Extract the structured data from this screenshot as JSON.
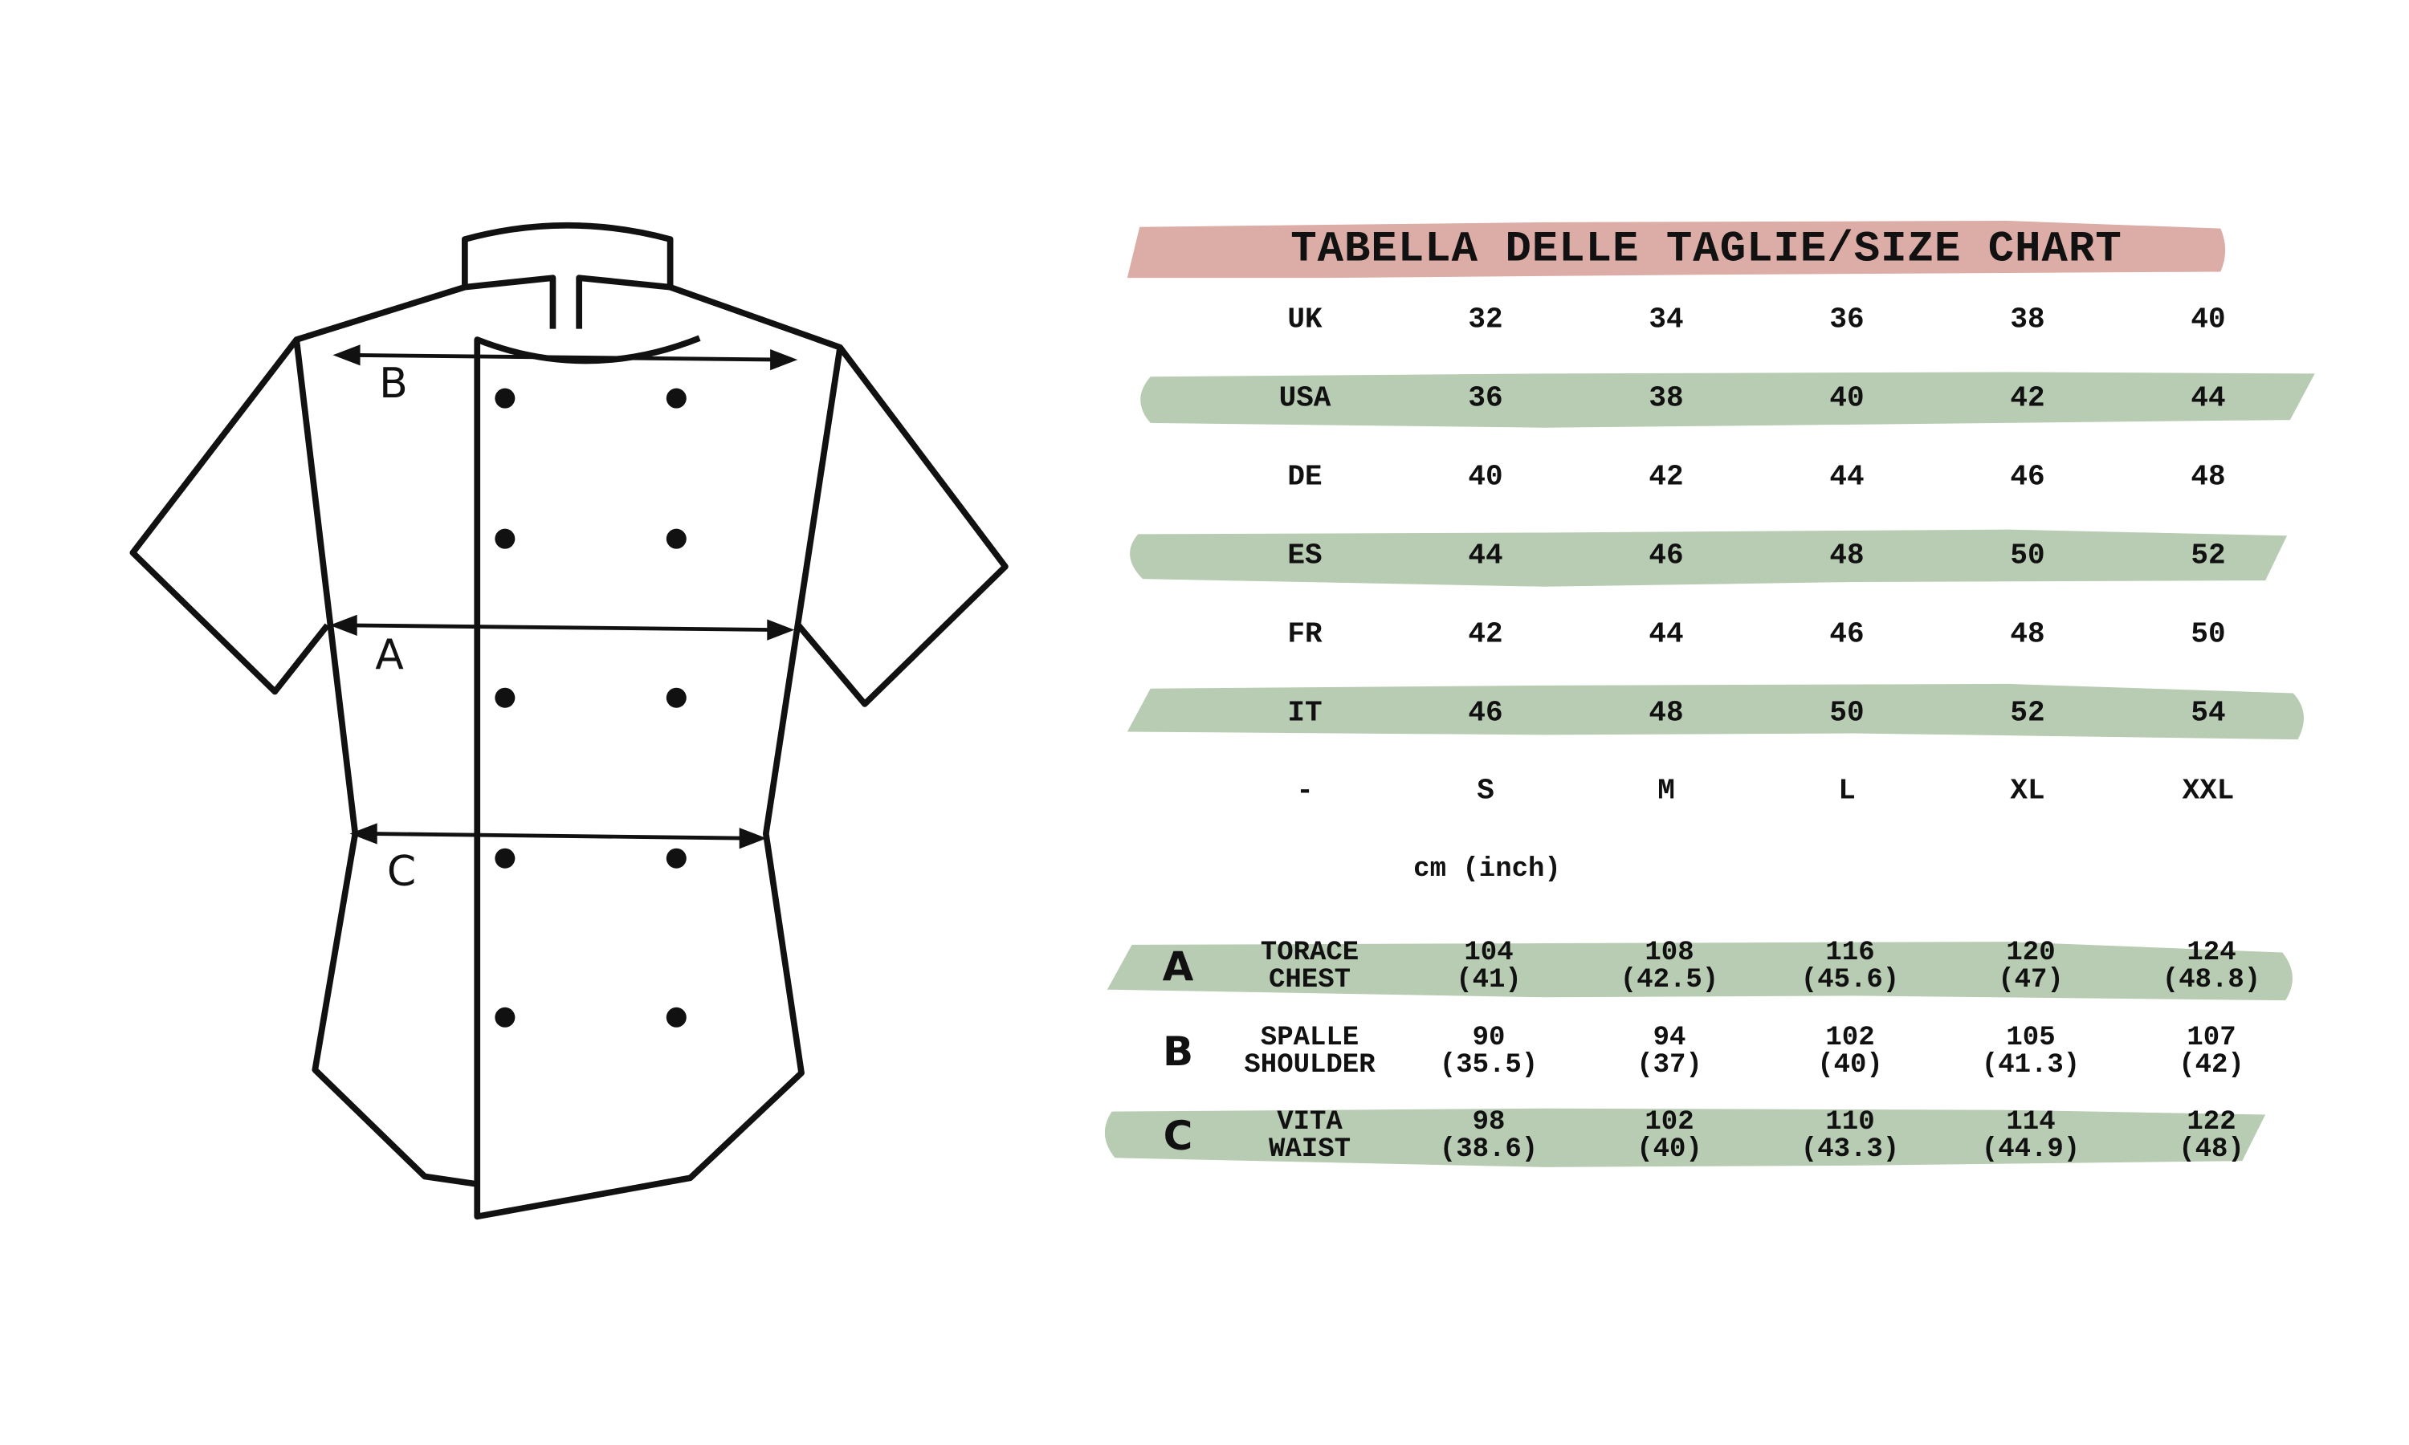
{
  "colors": {
    "title_band": "#dcaca6",
    "row_band": "#b7ccb2",
    "ink": "#111111"
  },
  "title": "TABELLA DELLE TAGLIE/SIZE CHART",
  "diagram_labels": [
    "B",
    "A",
    "C"
  ],
  "size_rows": [
    {
      "label": "UK",
      "values": [
        "32",
        "34",
        "36",
        "38",
        "40"
      ],
      "banded": false
    },
    {
      "label": "USA",
      "values": [
        "36",
        "38",
        "40",
        "42",
        "44"
      ],
      "banded": true
    },
    {
      "label": "DE",
      "values": [
        "40",
        "42",
        "44",
        "46",
        "48"
      ],
      "banded": false
    },
    {
      "label": "ES",
      "values": [
        "44",
        "46",
        "48",
        "50",
        "52"
      ],
      "banded": true
    },
    {
      "label": "FR",
      "values": [
        "42",
        "44",
        "46",
        "48",
        "50"
      ],
      "banded": false
    },
    {
      "label": "IT",
      "values": [
        "46",
        "48",
        "50",
        "52",
        "54"
      ],
      "banded": true
    },
    {
      "label": "-",
      "values": [
        "S",
        "M",
        "L",
        "XL",
        "XXL"
      ],
      "banded": false
    }
  ],
  "unit_label": "cm (inch)",
  "measurements": [
    {
      "letter": "A",
      "label_it": "TORACE",
      "label_en": "CHEST",
      "cm": [
        "104",
        "108",
        "116",
        "120",
        "124"
      ],
      "inch": [
        "(41)",
        "(42.5)",
        "(45.6)",
        "(47)",
        "(48.8)"
      ],
      "banded": true
    },
    {
      "letter": "B",
      "label_it": "SPALLE",
      "label_en": "SHOULDER",
      "cm": [
        "90",
        "94",
        "102",
        "105",
        "107"
      ],
      "inch": [
        "(35.5)",
        "(37)",
        "(40)",
        "(41.3)",
        "(42)"
      ],
      "banded": false
    },
    {
      "letter": "C",
      "label_it": "VITA",
      "label_en": "WAIST",
      "cm": [
        "98",
        "102",
        "110",
        "114",
        "122"
      ],
      "inch": [
        "(38.6)",
        "(40)",
        "(43.3)",
        "(44.9)",
        "(48)"
      ],
      "banded": true
    }
  ]
}
